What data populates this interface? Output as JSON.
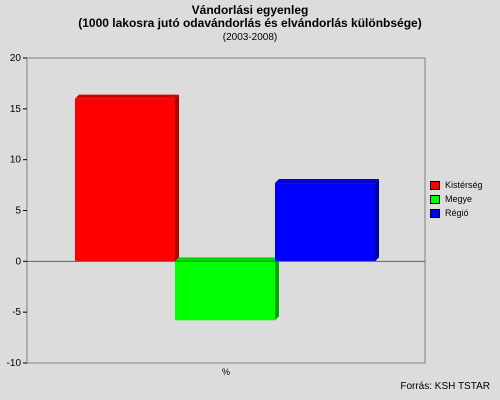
{
  "chart_data": {
    "type": "bar",
    "title": "Vándorlási egyenleg",
    "subtitle": "(1000 lakosra jutó odavándorlás és elvándorlás különbsége)",
    "period": "(2003-2008)",
    "xlabel": "%",
    "ylabel": "",
    "ylim": [
      -10,
      20
    ],
    "yticks": [
      -10,
      -5,
      0,
      5,
      10,
      15,
      20
    ],
    "grid": false,
    "legend_position": "right",
    "series": [
      {
        "name": "Kistérség",
        "value": 16,
        "color": "#ff0000",
        "side_color": "#b00000",
        "top_color": "#d80000"
      },
      {
        "name": "Megye",
        "value": -5.8,
        "color": "#00ff00",
        "side_color": "#00a800",
        "top_color": "#00d800"
      },
      {
        "name": "Régió",
        "value": 7.7,
        "color": "#0000ff",
        "side_color": "#0000a0",
        "top_color": "#0000d8"
      }
    ]
  },
  "source": "Forrás: KSH TSTAR"
}
